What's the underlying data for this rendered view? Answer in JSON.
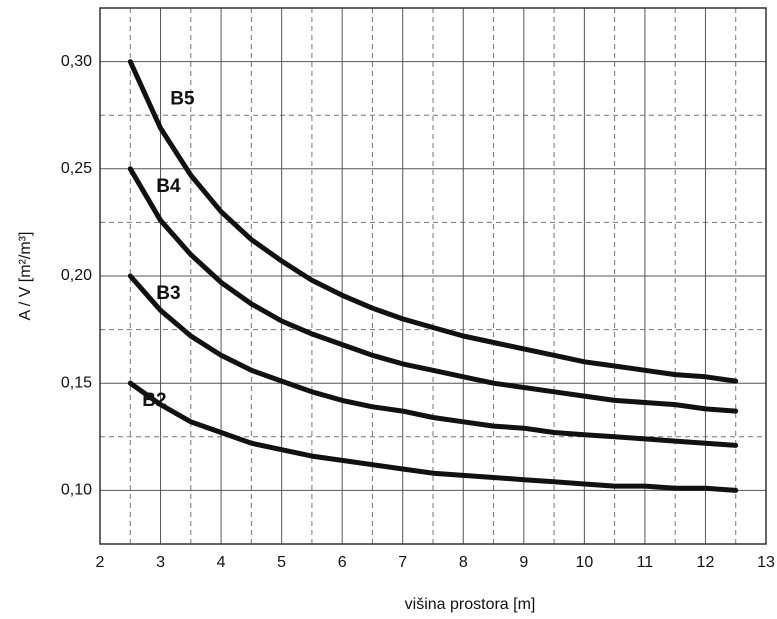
{
  "chart_data": {
    "type": "line",
    "x_label": "višina prostora [m]",
    "y_label": "A / V [m²/m³]",
    "x": [
      2.5,
      3,
      3.5,
      4,
      4.5,
      5,
      5.5,
      6,
      6.5,
      7,
      7.5,
      8,
      8.5,
      9,
      9.5,
      10,
      10.5,
      11,
      11.5,
      12,
      12.5
    ],
    "series": [
      {
        "name": "B5",
        "color": "#111111",
        "values": [
          0.3,
          0.269,
          0.247,
          0.23,
          0.217,
          0.207,
          0.198,
          0.191,
          0.185,
          0.18,
          0.176,
          0.172,
          0.169,
          0.166,
          0.163,
          0.16,
          0.158,
          0.156,
          0.154,
          0.153,
          0.151
        ]
      },
      {
        "name": "B4",
        "color": "#111111",
        "values": [
          0.25,
          0.226,
          0.21,
          0.197,
          0.187,
          0.179,
          0.173,
          0.168,
          0.163,
          0.159,
          0.156,
          0.153,
          0.15,
          0.148,
          0.146,
          0.144,
          0.142,
          0.141,
          0.14,
          0.138,
          0.137
        ]
      },
      {
        "name": "B3",
        "color": "#111111",
        "values": [
          0.2,
          0.184,
          0.172,
          0.163,
          0.156,
          0.151,
          0.146,
          0.142,
          0.139,
          0.137,
          0.134,
          0.132,
          0.13,
          0.129,
          0.127,
          0.126,
          0.125,
          0.124,
          0.123,
          0.122,
          0.121
        ]
      },
      {
        "name": "B2",
        "color": "#111111",
        "values": [
          0.15,
          0.14,
          0.132,
          0.127,
          0.122,
          0.119,
          0.116,
          0.114,
          0.112,
          0.11,
          0.108,
          0.107,
          0.106,
          0.105,
          0.104,
          0.103,
          0.102,
          0.102,
          0.101,
          0.101,
          0.1
        ]
      }
    ],
    "xlim": [
      2,
      13
    ],
    "ylim": [
      0.075,
      0.325
    ],
    "xticks": [
      2,
      3,
      4,
      5,
      6,
      7,
      8,
      9,
      10,
      11,
      12,
      13
    ],
    "yticks": [
      {
        "value": 0.1,
        "label": "0,10"
      },
      {
        "value": 0.15,
        "label": "0,15"
      },
      {
        "value": 0.2,
        "label": "0,20"
      },
      {
        "value": 0.25,
        "label": "0,25"
      },
      {
        "value": 0.3,
        "label": "0,30"
      }
    ],
    "x_minor_grid": [
      2.5,
      3.5,
      4.5,
      5.5,
      6.5,
      7.5,
      8.5,
      9.5,
      10.5,
      11.5,
      12.5
    ],
    "y_minor_grid": [
      0.125,
      0.175,
      0.225,
      0.275
    ],
    "grid": true
  }
}
